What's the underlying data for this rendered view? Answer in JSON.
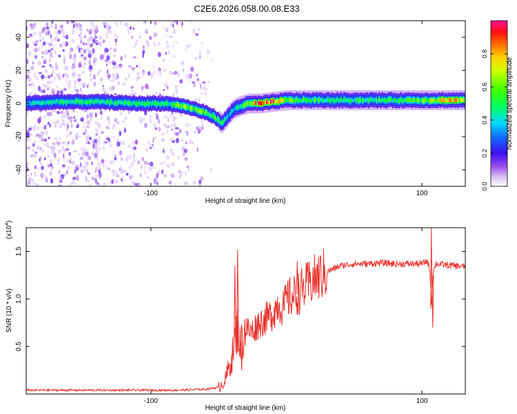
{
  "figure": {
    "title": "C2E6.2026.058.00.08.E33"
  },
  "colors": {
    "snr_line": "#e8302a",
    "weak_speckle": "#c9a6f0",
    "axis": "#000000"
  },
  "chart_data": [
    {
      "type": "heatmap",
      "title": "C2E6.2026.058.00.08.E33",
      "xlabel": "Height of straight line (km)",
      "ylabel": "Frequency (Hz)",
      "xlim": [
        -192,
        132
      ],
      "ylim": [
        -50,
        50
      ],
      "xticks": [
        -100,
        100
      ],
      "yticks": [
        -40,
        -20,
        0,
        20,
        40
      ],
      "colorbar": {
        "label": "Normalized spectral amplitude",
        "range": [
          0,
          1
        ],
        "ticks": [
          "0.0",
          "0.2",
          "0.4",
          "0.6",
          "0.8"
        ],
        "tick_values": [
          0.0,
          0.2,
          0.4,
          0.6,
          0.8
        ]
      },
      "ridge": {
        "description": "dominant echo frequency vs height",
        "x": [
          -192,
          -170,
          -140,
          -110,
          -90,
          -80,
          -70,
          -62,
          -56,
          -52,
          -48,
          -44,
          -40,
          -36,
          -32,
          -28,
          -20,
          -10,
          0,
          10,
          20,
          40,
          60,
          80,
          100,
          115,
          132
        ],
        "freq": [
          0,
          1,
          1,
          0,
          0,
          -1,
          -3,
          -5,
          -7,
          -9,
          -12,
          -8,
          -4,
          -2,
          -1,
          0,
          0,
          1,
          2,
          2,
          2,
          2,
          2,
          2,
          2,
          2,
          2
        ],
        "amplitude": [
          0.4,
          0.45,
          0.45,
          0.5,
          0.45,
          0.55,
          0.6,
          0.6,
          0.55,
          0.5,
          0.45,
          0.35,
          0.4,
          0.45,
          0.55,
          0.7,
          0.85,
          0.9,
          0.6,
          0.55,
          0.5,
          0.5,
          0.5,
          0.5,
          0.55,
          0.75,
          0.7
        ]
      }
    },
    {
      "type": "line",
      "title": "",
      "xlabel": "Height of straight line (km)",
      "ylabel": "SNR (10 * v/v)",
      "y_multiplier": "(x10",
      "y_multiplier_exp": "4",
      "y_multiplier_close": ")",
      "xlim": [
        -192,
        132
      ],
      "ylim": [
        0,
        1.75
      ],
      "xticks": [
        -100,
        100
      ],
      "yticks": [
        0.5,
        1.0,
        1.5
      ],
      "ytick_labels": [
        "0.5",
        "1.0",
        "1.5"
      ],
      "series": [
        {
          "name": "SNR",
          "x": [
            -192,
            -160,
            -130,
            -100,
            -80,
            -60,
            -50,
            -45,
            -40,
            -38,
            -36,
            -34,
            -32,
            -30,
            -26,
            -20,
            -14,
            -10,
            -6,
            -2,
            0,
            4,
            8,
            12,
            16,
            20,
            26,
            32,
            40,
            50,
            60,
            70,
            80,
            90,
            100,
            104,
            106,
            107,
            108,
            110,
            116,
            124,
            132
          ],
          "y": [
            0.04,
            0.04,
            0.04,
            0.04,
            0.04,
            0.05,
            0.07,
            0.15,
            0.4,
            0.55,
            0.7,
            0.5,
            0.6,
            0.7,
            0.65,
            0.75,
            0.8,
            0.85,
            0.95,
            0.9,
            1.0,
            1.02,
            1.05,
            1.1,
            1.15,
            1.2,
            1.25,
            1.3,
            1.35,
            1.37,
            1.37,
            1.38,
            1.37,
            1.37,
            1.37,
            1.4,
            1.3,
            0.9,
            1.25,
            1.37,
            1.36,
            1.35,
            1.34
          ]
        }
      ],
      "spikes": [
        {
          "x": -36,
          "y": 1.52
        },
        {
          "x": -38,
          "y": 1.35
        },
        {
          "x": -33,
          "y": 0.25
        },
        {
          "x": 8,
          "y": 1.4
        },
        {
          "x": 107,
          "y": 1.75
        },
        {
          "x": 108,
          "y": 0.7
        }
      ]
    }
  ]
}
